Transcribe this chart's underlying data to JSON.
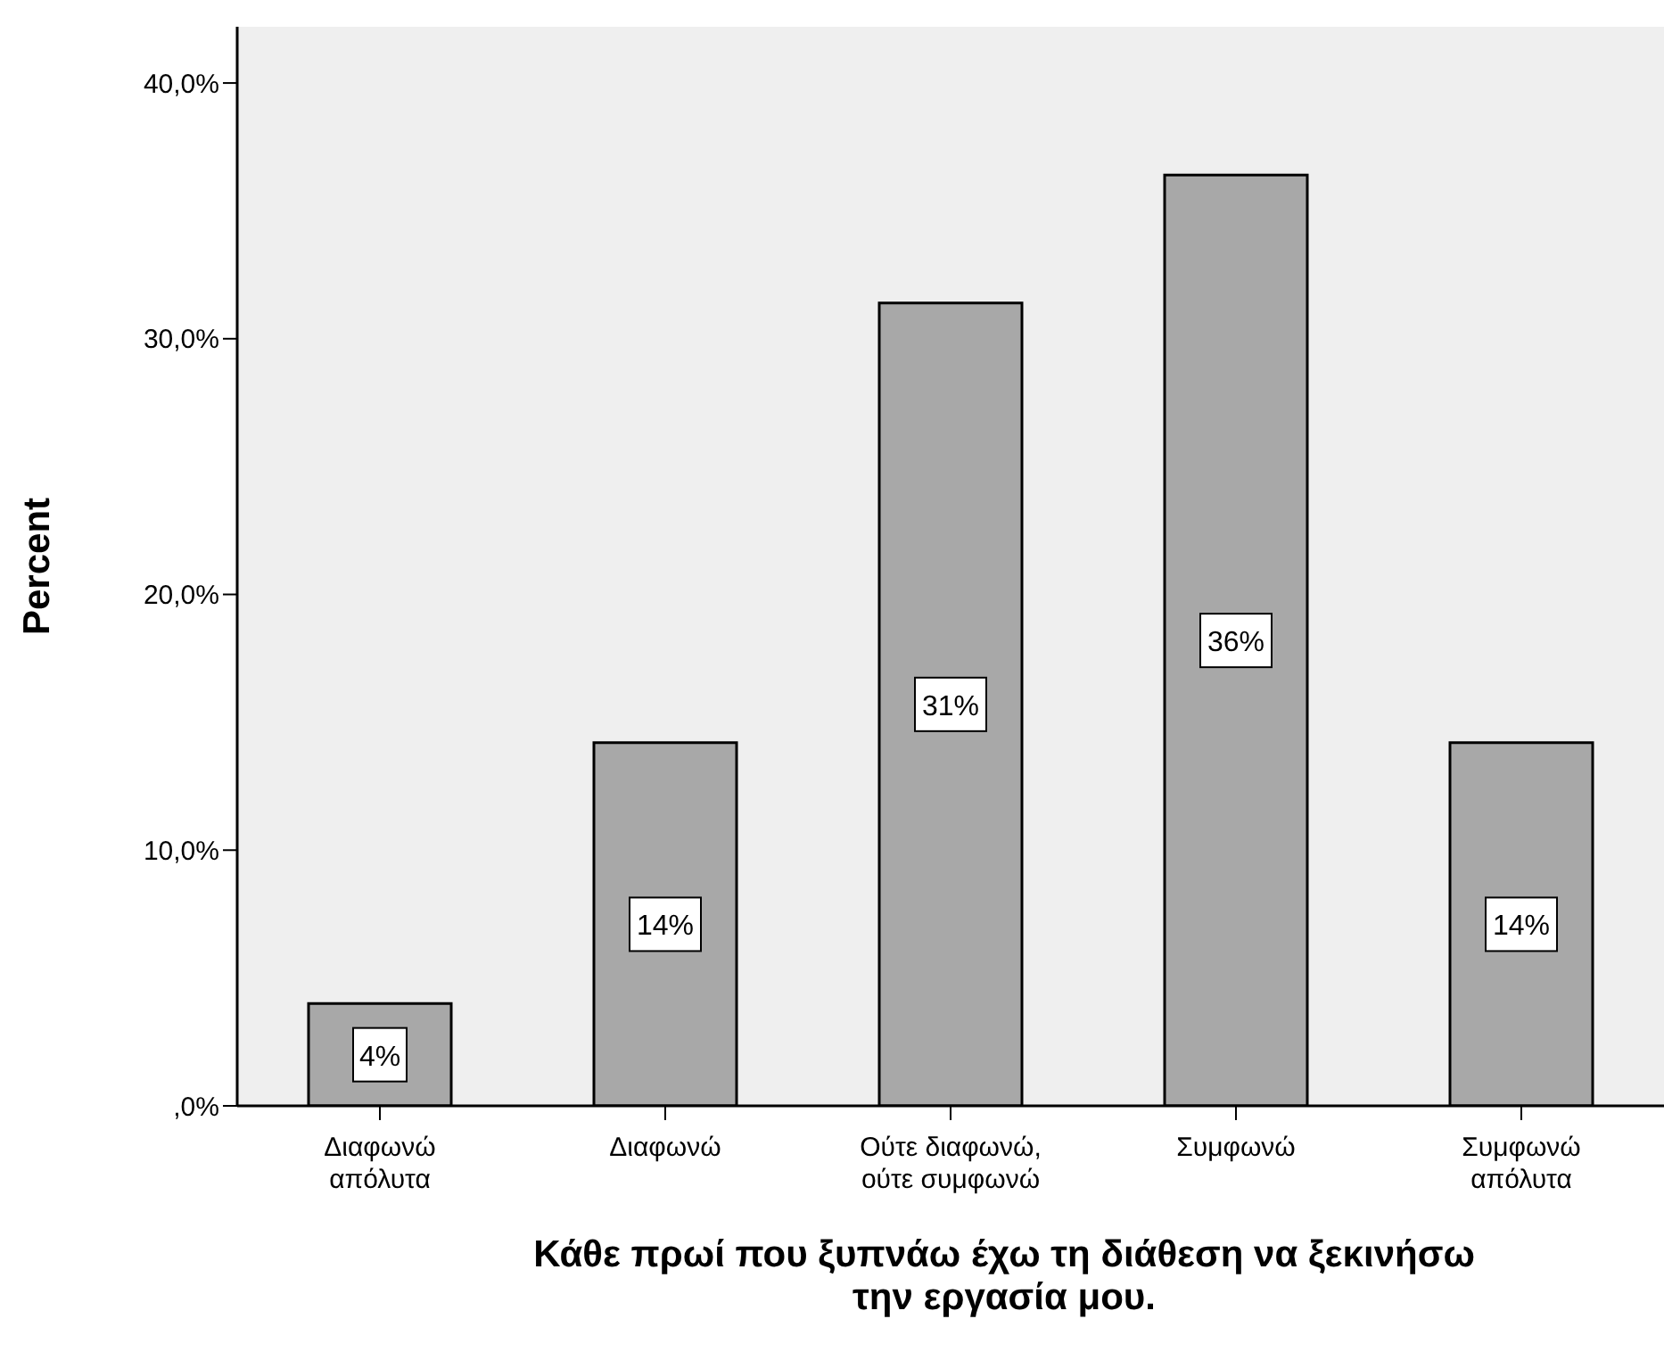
{
  "chart_data": {
    "type": "bar",
    "xlabel": "Κάθε πρωί που ξυπνάω έχω τη διάθεση να ξεκινήσω\nτην εργασία μου.",
    "ylabel": "Percent",
    "categories": [
      "Διαφωνώ\nαπόλυτα",
      "Διαφωνώ",
      "Ούτε διαφωνώ,\nούτε συμφωνώ",
      "Συμφωνώ",
      "Συμφωνώ\nαπόλυτα"
    ],
    "values": [
      4.0,
      14.2,
      31.4,
      36.4,
      14.2
    ],
    "color": "#a8a8a8",
    "value_labels": [
      "4%",
      "14%",
      "31%",
      "36%",
      "14%"
    ],
    "ylim": [
      0,
      42.2
    ],
    "yticks": [
      {
        "value": 0,
        "label": ",0%"
      },
      {
        "value": 10,
        "label": "10,0%"
      },
      {
        "value": 20,
        "label": "20,0%"
      },
      {
        "value": 30,
        "label": "30,0%"
      },
      {
        "value": 40,
        "label": "40,0%"
      }
    ],
    "grid": false,
    "legend": false
  }
}
